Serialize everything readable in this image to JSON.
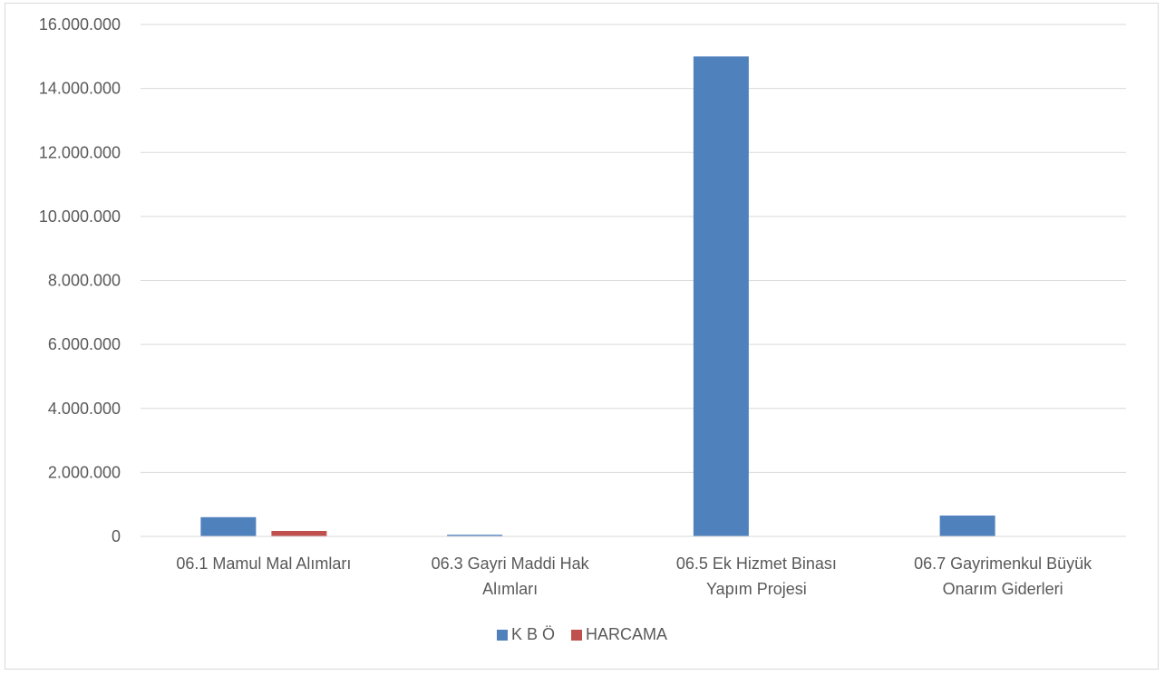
{
  "chart_data": {
    "type": "bar",
    "title": "",
    "xlabel": "",
    "ylabel": "",
    "categories": [
      [
        "06.1 Mamul Mal Alımları"
      ],
      [
        "06.3 Gayri Maddi Hak",
        "Alımları"
      ],
      [
        "06.5 Ek Hizmet Binası",
        "Yapım Projesi"
      ],
      [
        "06.7 Gayrimenkul Büyük",
        "Onarım Giderleri"
      ]
    ],
    "series": [
      {
        "name": "K B Ö",
        "color": "#4f81bd",
        "values": [
          600000,
          50000,
          15000000,
          650000
        ]
      },
      {
        "name": "HARCAMA",
        "color": "#c0504d",
        "values": [
          170000,
          0,
          0,
          0
        ]
      }
    ],
    "ylim": [
      0,
      16000000
    ],
    "yticks": [
      0,
      2000000,
      4000000,
      6000000,
      8000000,
      10000000,
      12000000,
      14000000,
      16000000
    ],
    "ytick_labels": [
      "0",
      "2.000.000",
      "4.000.000",
      "6.000.000",
      "8.000.000",
      "10.000.000",
      "12.000.000",
      "14.000.000",
      "16.000.000"
    ],
    "grid": true,
    "legend_position": "bottom"
  }
}
